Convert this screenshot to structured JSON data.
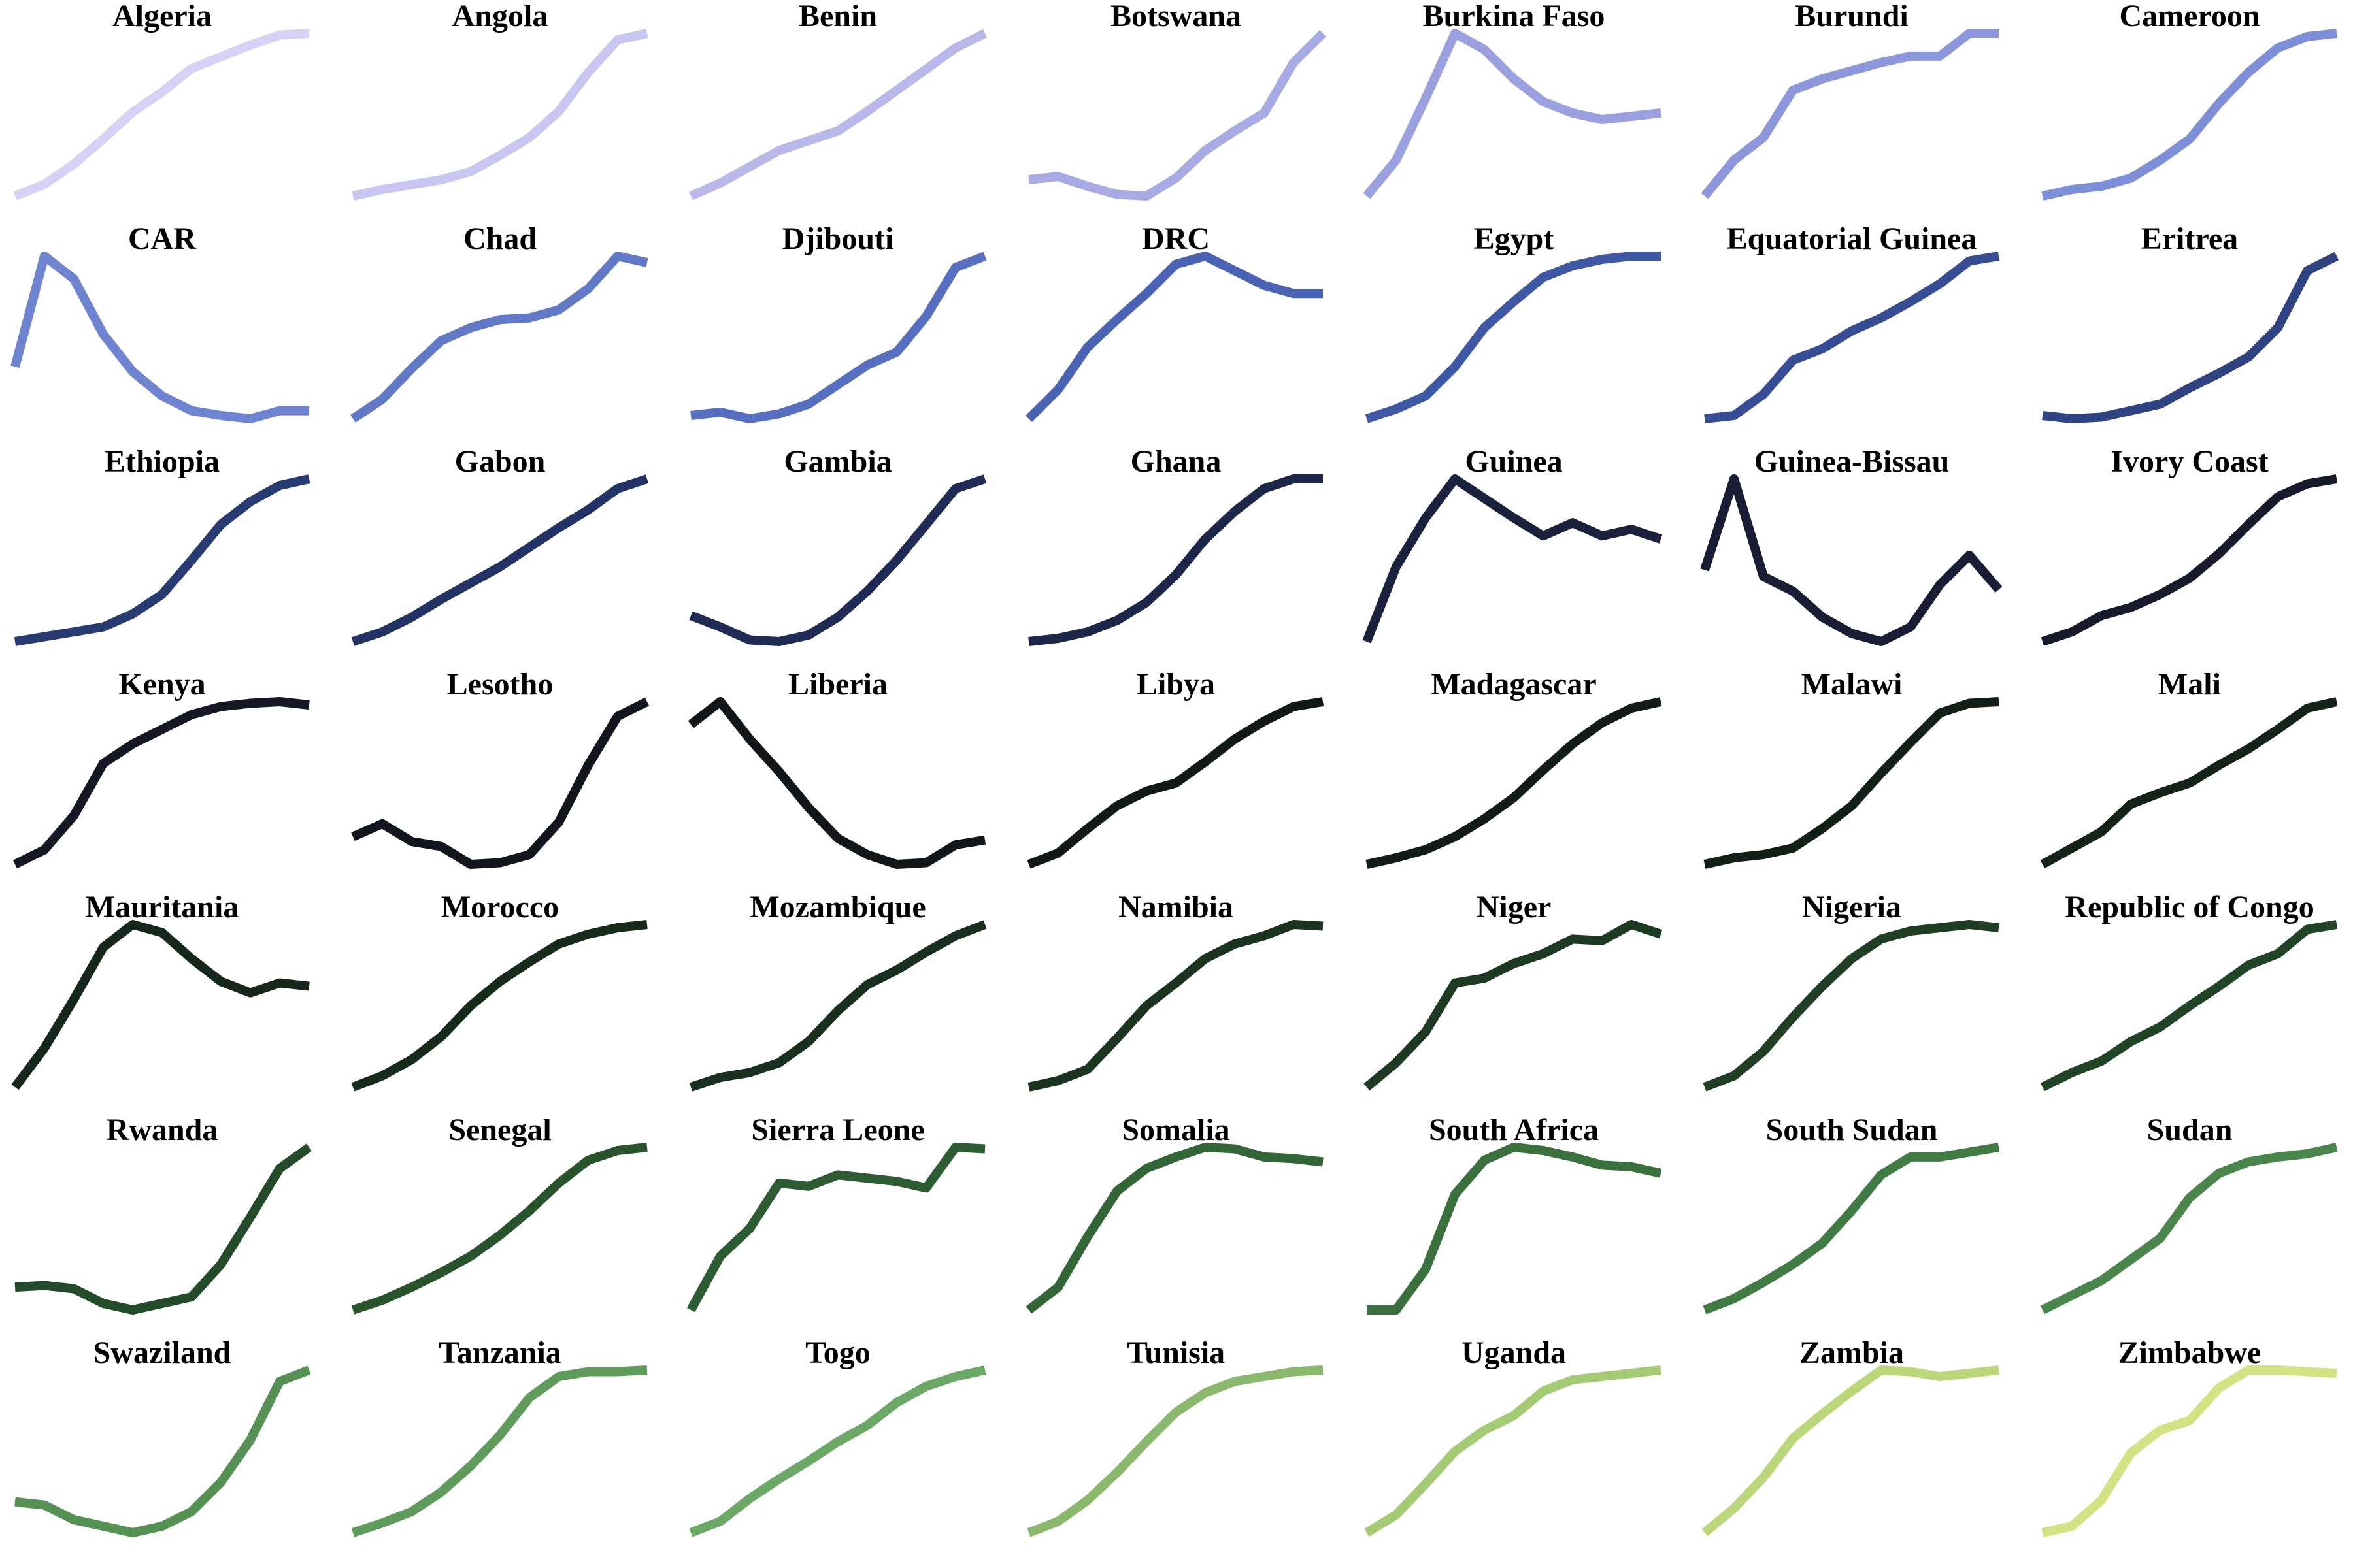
{
  "chart_data": [
    {
      "type": "line",
      "title": "Algeria",
      "color": "#d6d1f5",
      "values": [
        0,
        7,
        19,
        34,
        50,
        62,
        76,
        83,
        90,
        96,
        97
      ]
    },
    {
      "type": "line",
      "title": "Angola",
      "color": "#c9c6f2",
      "values": [
        0,
        4,
        7,
        10,
        15,
        25,
        36,
        52,
        76,
        96,
        100
      ]
    },
    {
      "type": "line",
      "title": "Benin",
      "color": "#b8b8ea",
      "values": [
        0,
        8,
        18,
        28,
        34,
        40,
        52,
        65,
        78,
        91,
        100
      ]
    },
    {
      "type": "line",
      "title": "Botswana",
      "color": "#a8abe3",
      "values": [
        10,
        12,
        6,
        1,
        0,
        11,
        28,
        40,
        51,
        82,
        100
      ]
    },
    {
      "type": "line",
      "title": "Burkina Faso",
      "color": "#9aa0e0",
      "values": [
        0,
        22,
        60,
        100,
        90,
        72,
        58,
        51,
        47,
        49,
        51
      ]
    },
    {
      "type": "line",
      "title": "Burundi",
      "color": "#8d97db",
      "values": [
        0,
        22,
        36,
        65,
        72,
        77,
        82,
        86,
        86,
        100,
        100
      ]
    },
    {
      "type": "line",
      "title": "Cameroon",
      "color": "#7d8fd8",
      "values": [
        0,
        4,
        6,
        11,
        22,
        35,
        57,
        76,
        91,
        98,
        100
      ]
    },
    {
      "type": "line",
      "title": "CAR",
      "color": "#6f84d0",
      "values": [
        32,
        100,
        86,
        52,
        29,
        14,
        5,
        2,
        0,
        5,
        5
      ]
    },
    {
      "type": "line",
      "title": "Chad",
      "color": "#6279c8",
      "values": [
        0,
        12,
        31,
        48,
        56,
        61,
        62,
        67,
        80,
        100,
        96
      ]
    },
    {
      "type": "line",
      "title": "Djibouti",
      "color": "#566fc1",
      "values": [
        2,
        4,
        0,
        3,
        9,
        21,
        33,
        41,
        63,
        93,
        100
      ]
    },
    {
      "type": "line",
      "title": "DRC",
      "color": "#4a63b5",
      "values": [
        0,
        18,
        44,
        61,
        77,
        95,
        100,
        91,
        82,
        77,
        77
      ]
    },
    {
      "type": "line",
      "title": "Egypt",
      "color": "#3f58a6",
      "values": [
        0,
        6,
        14,
        32,
        56,
        72,
        87,
        94,
        98,
        100,
        100
      ]
    },
    {
      "type": "line",
      "title": "Equatorial Guinea",
      "color": "#364c94",
      "values": [
        0,
        2,
        15,
        36,
        43,
        54,
        62,
        72,
        83,
        97,
        100
      ]
    },
    {
      "type": "line",
      "title": "Eritrea",
      "color": "#2f4282",
      "values": [
        2,
        0,
        1,
        5,
        9,
        19,
        28,
        38,
        56,
        91,
        100
      ]
    },
    {
      "type": "line",
      "title": "Ethiopia",
      "color": "#283a72",
      "values": [
        0,
        3,
        6,
        9,
        17,
        29,
        50,
        72,
        86,
        96,
        100
      ]
    },
    {
      "type": "line",
      "title": "Gabon",
      "color": "#223264",
      "values": [
        0,
        6,
        15,
        26,
        36,
        46,
        58,
        70,
        81,
        94,
        100
      ]
    },
    {
      "type": "line",
      "title": "Gambia",
      "color": "#1f2b55",
      "values": [
        16,
        9,
        1,
        0,
        4,
        15,
        31,
        50,
        72,
        94,
        100
      ]
    },
    {
      "type": "line",
      "title": "Ghana",
      "color": "#1c2648",
      "values": [
        0,
        2,
        6,
        13,
        24,
        41,
        63,
        80,
        94,
        100,
        100
      ]
    },
    {
      "type": "line",
      "title": "Guinea",
      "color": "#1a213d",
      "values": [
        0,
        46,
        76,
        100,
        88,
        76,
        65,
        73,
        65,
        69,
        63
      ]
    },
    {
      "type": "line",
      "title": "Guinea-Bissau",
      "color": "#181d33",
      "values": [
        44,
        100,
        40,
        31,
        15,
        5,
        0,
        9,
        35,
        53,
        32
      ]
    },
    {
      "type": "line",
      "title": "Ivory Coast",
      "color": "#161a2b",
      "values": [
        0,
        6,
        16,
        21,
        29,
        39,
        54,
        72,
        89,
        97,
        100
      ]
    },
    {
      "type": "line",
      "title": "Kenya",
      "color": "#151724",
      "values": [
        0,
        9,
        30,
        62,
        74,
        83,
        92,
        97,
        99,
        100,
        98
      ]
    },
    {
      "type": "line",
      "title": "Lesotho",
      "color": "#13151e",
      "values": [
        17,
        25,
        14,
        11,
        0,
        1,
        6,
        26,
        61,
        91,
        100
      ]
    },
    {
      "type": "line",
      "title": "Liberia",
      "color": "#121619",
      "values": [
        86,
        100,
        77,
        57,
        35,
        16,
        6,
        0,
        1,
        12,
        15
      ]
    },
    {
      "type": "line",
      "title": "Libya",
      "color": "#111917",
      "values": [
        0,
        7,
        22,
        36,
        45,
        50,
        63,
        77,
        88,
        97,
        100
      ]
    },
    {
      "type": "line",
      "title": "Madagascar",
      "color": "#111c16",
      "values": [
        0,
        4,
        9,
        17,
        28,
        41,
        58,
        74,
        87,
        96,
        100
      ]
    },
    {
      "type": "line",
      "title": "Malawi",
      "color": "#121f17",
      "values": [
        0,
        4,
        6,
        10,
        22,
        36,
        56,
        75,
        93,
        99,
        100
      ]
    },
    {
      "type": "line",
      "title": "Mali",
      "color": "#132318",
      "values": [
        0,
        10,
        20,
        37,
        44,
        50,
        61,
        71,
        83,
        96,
        100
      ]
    },
    {
      "type": "line",
      "title": "Mauritania",
      "color": "#15271a",
      "values": [
        0,
        24,
        54,
        86,
        100,
        95,
        79,
        65,
        58,
        64,
        62
      ]
    },
    {
      "type": "line",
      "title": "Morocco",
      "color": "#172b1b",
      "values": [
        0,
        7,
        17,
        31,
        50,
        65,
        77,
        88,
        94,
        98,
        100
      ]
    },
    {
      "type": "line",
      "title": "Mozambique",
      "color": "#192f1d",
      "values": [
        0,
        6,
        9,
        15,
        28,
        47,
        63,
        72,
        83,
        93,
        100
      ]
    },
    {
      "type": "line",
      "title": "Namibia",
      "color": "#1b341f",
      "values": [
        0,
        4,
        11,
        30,
        50,
        64,
        79,
        88,
        93,
        100,
        99
      ]
    },
    {
      "type": "line",
      "title": "Niger",
      "color": "#1d3921",
      "values": [
        0,
        15,
        34,
        64,
        67,
        76,
        82,
        91,
        90,
        100,
        94
      ]
    },
    {
      "type": "line",
      "title": "Nigeria",
      "color": "#1f3e23",
      "values": [
        0,
        7,
        22,
        43,
        62,
        79,
        91,
        96,
        98,
        100,
        98
      ]
    },
    {
      "type": "line",
      "title": "Republic of Congo",
      "color": "#214426",
      "values": [
        0,
        9,
        16,
        28,
        37,
        50,
        62,
        75,
        82,
        97,
        100
      ]
    },
    {
      "type": "line",
      "title": "Rwanda",
      "color": "#244b29",
      "values": [
        14,
        15,
        13,
        4,
        0,
        4,
        8,
        28,
        57,
        87,
        100
      ]
    },
    {
      "type": "line",
      "title": "Senegal",
      "color": "#28532d",
      "values": [
        0,
        6,
        14,
        23,
        33,
        46,
        61,
        78,
        92,
        98,
        100
      ]
    },
    {
      "type": "line",
      "title": "Sierra Leone",
      "color": "#2d5c32",
      "values": [
        0,
        33,
        50,
        78,
        76,
        83,
        81,
        79,
        75,
        100,
        99
      ]
    },
    {
      "type": "line",
      "title": "Somalia",
      "color": "#336637",
      "values": [
        0,
        14,
        45,
        73,
        87,
        94,
        100,
        99,
        94,
        93,
        91
      ]
    },
    {
      "type": "line",
      "title": "South Africa",
      "color": "#39703d",
      "values": [
        0,
        0,
        25,
        71,
        92,
        100,
        98,
        94,
        89,
        88,
        84
      ]
    },
    {
      "type": "line",
      "title": "South Sudan",
      "color": "#417b44",
      "values": [
        0,
        7,
        17,
        28,
        41,
        61,
        83,
        94,
        94,
        97,
        100
      ]
    },
    {
      "type": "line",
      "title": "Sudan",
      "color": "#4a864b",
      "values": [
        0,
        9,
        18,
        31,
        44,
        69,
        84,
        91,
        94,
        96,
        100
      ]
    },
    {
      "type": "line",
      "title": "Swaziland",
      "color": "#549153",
      "values": [
        19,
        17,
        8,
        4,
        0,
        4,
        13,
        31,
        57,
        93,
        100
      ]
    },
    {
      "type": "line",
      "title": "Tanzania",
      "color": "#5f9c5b",
      "values": [
        0,
        6,
        13,
        25,
        41,
        60,
        83,
        96,
        99,
        99,
        100
      ]
    },
    {
      "type": "line",
      "title": "Togo",
      "color": "#6ba765",
      "values": [
        0,
        7,
        21,
        33,
        44,
        56,
        66,
        80,
        90,
        96,
        100
      ]
    },
    {
      "type": "line",
      "title": "Tunisia",
      "color": "#8ab86c",
      "values": [
        0,
        7,
        20,
        37,
        56,
        74,
        86,
        93,
        96,
        99,
        100
      ]
    },
    {
      "type": "line",
      "title": "Uganda",
      "color": "#a4ca74",
      "values": [
        0,
        11,
        30,
        50,
        63,
        72,
        87,
        94,
        96,
        98,
        100
      ]
    },
    {
      "type": "line",
      "title": "Zambia",
      "color": "#bcd67a",
      "values": [
        0,
        15,
        34,
        58,
        73,
        87,
        100,
        99,
        96,
        98,
        100
      ]
    },
    {
      "type": "line",
      "title": "Zimbabwe",
      "color": "#d3e283",
      "values": [
        0,
        4,
        20,
        49,
        63,
        69,
        89,
        100,
        100,
        99,
        98
      ]
    }
  ]
}
